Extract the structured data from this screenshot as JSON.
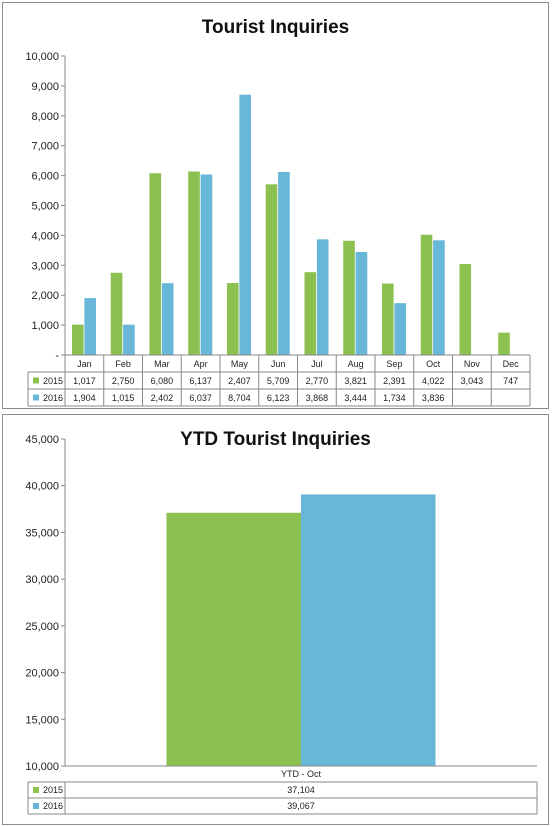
{
  "chart_data": [
    {
      "type": "bar",
      "title": "Tourist Inquiries",
      "categories": [
        "Jan",
        "Feb",
        "Mar",
        "Apr",
        "May",
        "Jun",
        "Jul",
        "Aug",
        "Sep",
        "Oct",
        "Nov",
        "Dec"
      ],
      "series": [
        {
          "name": "2015",
          "color": "#8cc152",
          "values": [
            1017,
            2750,
            6080,
            6137,
            2407,
            5709,
            2770,
            3821,
            2391,
            4022,
            3043,
            747
          ],
          "labels": [
            "1,017",
            "2,750",
            "6,080",
            "6,137",
            "2,407",
            "5,709",
            "2,770",
            "3,821",
            "2,391",
            "4,022",
            "3,043",
            "747"
          ]
        },
        {
          "name": "2016",
          "color": "#68b6d8",
          "values": [
            1904,
            1015,
            2402,
            6037,
            8704,
            6123,
            3868,
            3444,
            1734,
            3836,
            null,
            null
          ],
          "labels": [
            "1,904",
            "1,015",
            "2,402",
            "6,037",
            "8,704",
            "6,123",
            "3,868",
            "3,444",
            "1,734",
            "3,836",
            "",
            ""
          ]
        }
      ],
      "ylim": [
        0,
        10000
      ],
      "ytick_labels": [
        "-",
        "1,000",
        "2,000",
        "3,000",
        "4,000",
        "5,000",
        "6,000",
        "7,000",
        "8,000",
        "9,000",
        "10,000"
      ],
      "grid": false,
      "legend": "data-table"
    },
    {
      "type": "bar",
      "title": "YTD Tourist Inquiries",
      "categories": [
        "YTD - Oct"
      ],
      "series": [
        {
          "name": "2015",
          "color": "#8cc152",
          "values": [
            37104
          ],
          "labels": [
            "37,104"
          ]
        },
        {
          "name": "2016",
          "color": "#68b6d8",
          "values": [
            39067
          ],
          "labels": [
            "39,067"
          ]
        }
      ],
      "ylim": [
        10000,
        45000
      ],
      "ytick_labels": [
        "10,000",
        "15,000",
        "20,000",
        "25,000",
        "30,000",
        "35,000",
        "40,000",
        "45,000"
      ],
      "grid": false,
      "legend": "data-table"
    }
  ]
}
